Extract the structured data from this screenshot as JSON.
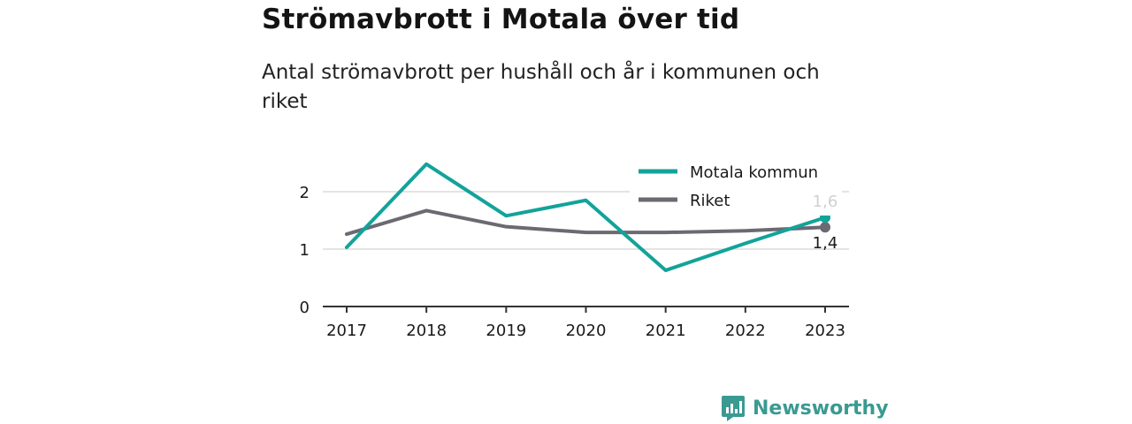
{
  "title": "Strömavbrott i Motala över tid",
  "subtitle": "Antal strömavbrott per hushåll och år i kommunen och riket",
  "brand": {
    "name": "Newsworthy",
    "icon": "newsworthy-logo-icon",
    "color": "#3a9a92"
  },
  "chart_data": {
    "type": "line",
    "x": [
      "2017",
      "2018",
      "2019",
      "2020",
      "2021",
      "2022",
      "2023"
    ],
    "series": [
      {
        "name": "Motala kommun",
        "color": "#12a39a",
        "values": [
          1.03,
          2.48,
          1.58,
          1.85,
          0.63,
          1.1,
          1.55
        ],
        "end_label": "1,6"
      },
      {
        "name": "Riket",
        "color": "#6b6a72",
        "values": [
          1.26,
          1.67,
          1.39,
          1.29,
          1.29,
          1.32,
          1.38
        ],
        "end_label": "1,4"
      }
    ],
    "y_ticks": [
      "0",
      "1",
      "2"
    ],
    "ylim": [
      0,
      2.6
    ],
    "grid": true,
    "legend": "top-right"
  }
}
